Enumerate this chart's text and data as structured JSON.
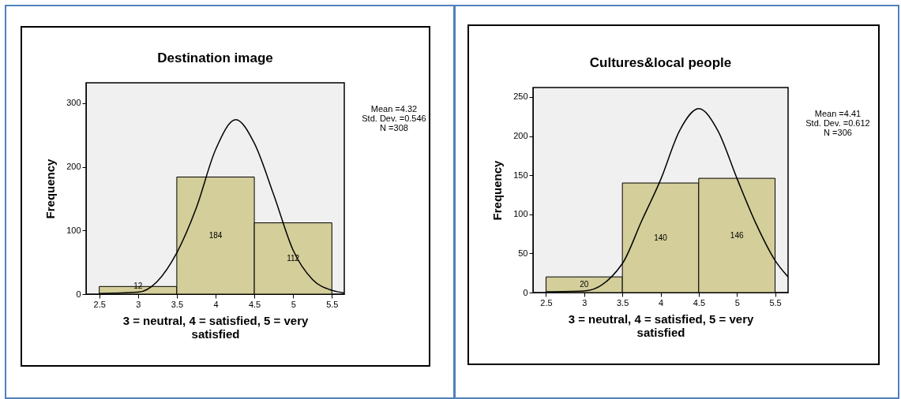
{
  "chart_data": [
    {
      "type": "histogram",
      "title": "Destination image",
      "xlabel": "3 = neutral, 4 = satisfied, 5 = very satisfied",
      "ylabel": "Frequency",
      "bins": [
        2.5,
        3.5,
        4.5,
        5.5
      ],
      "values": [
        12,
        184,
        112
      ],
      "value_labels": [
        "12",
        "184",
        "112"
      ],
      "color": "#d3ce9a",
      "xlim": [
        2.33,
        5.66
      ],
      "ylim": [
        0,
        332
      ],
      "xticks": [
        2.5,
        3,
        3.5,
        4,
        4.5,
        5,
        5.5
      ],
      "yticks": [
        0,
        100,
        200,
        300
      ],
      "grid": false,
      "annotations": [
        "Mean =4.32",
        "Std. Dev. =0.546",
        "N =308"
      ],
      "series": [
        {
          "type": "line",
          "color": "#000000",
          "x": [
            2.5,
            3,
            3.5,
            3.75,
            4,
            4.26,
            4.5,
            4.75,
            5,
            5.25,
            5.5,
            5.66
          ],
          "values": [
            1,
            3,
            65,
            135,
            227,
            274,
            237,
            156,
            69,
            23,
            6,
            2
          ]
        }
      ]
    },
    {
      "type": "histogram",
      "title": "Cultures&local people",
      "xlabel": "3 = neutral, 4 = satisfied, 5 = very satisfied",
      "ylabel": "Frequency",
      "bins": [
        2.5,
        3.5,
        4.5,
        5.5
      ],
      "values": [
        20,
        140,
        146
      ],
      "value_labels": [
        "20",
        "140",
        "146"
      ],
      "color": "#d3ce9a",
      "xlim": [
        2.33,
        5.67
      ],
      "ylim": [
        0,
        262
      ],
      "xticks": [
        2.5,
        3,
        3.5,
        4,
        4.5,
        5,
        5.5
      ],
      "yticks": [
        0,
        50,
        100,
        150,
        200,
        250
      ],
      "grid": false,
      "annotations": [
        "Mean =4.41",
        "Std. Dev. =0.612",
        "N =306"
      ],
      "series": [
        {
          "type": "line",
          "color": "#000000",
          "x": [
            2.5,
            3,
            3.5,
            3.75,
            4,
            4.25,
            4.5,
            4.75,
            5,
            5.25,
            5.5,
            5.67
          ],
          "values": [
            1,
            2,
            37,
            91,
            144,
            207,
            235,
            207,
            146,
            88,
            41,
            20
          ]
        }
      ]
    }
  ]
}
